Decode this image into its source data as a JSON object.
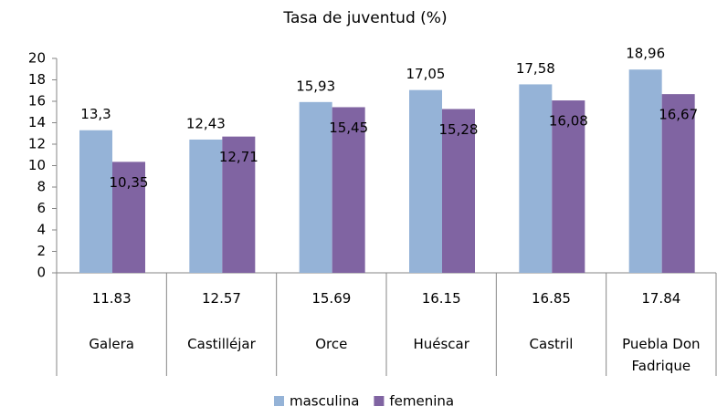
{
  "chart_data": {
    "type": "bar",
    "title": "Tasa de juventud (%)",
    "categories": [
      "Galera",
      "Castilléjar",
      "Orce",
      "Huéscar",
      "Castril",
      "Puebla Don Fadrique"
    ],
    "table_values": [
      11.83,
      12.57,
      15.69,
      16.15,
      16.85,
      17.84
    ],
    "series": [
      {
        "name": "masculina",
        "color": "#95b3d7",
        "values": [
          13.3,
          12.43,
          15.93,
          17.05,
          17.58,
          18.96
        ],
        "value_labels": [
          "13,3",
          "12,43",
          "15,93",
          "17,05",
          "17,58",
          "18,96"
        ]
      },
      {
        "name": "femenina",
        "color": "#8064a2",
        "values": [
          10.35,
          12.71,
          15.45,
          15.28,
          16.08,
          16.67
        ],
        "value_labels": [
          "10,35",
          "12,71",
          "15,45",
          "15,28",
          "16,08",
          "16,67"
        ]
      }
    ],
    "ylim": [
      0,
      20
    ],
    "yticks": [
      0,
      2,
      4,
      6,
      8,
      10,
      12,
      14,
      16,
      18,
      20
    ],
    "legend": "bottom"
  }
}
